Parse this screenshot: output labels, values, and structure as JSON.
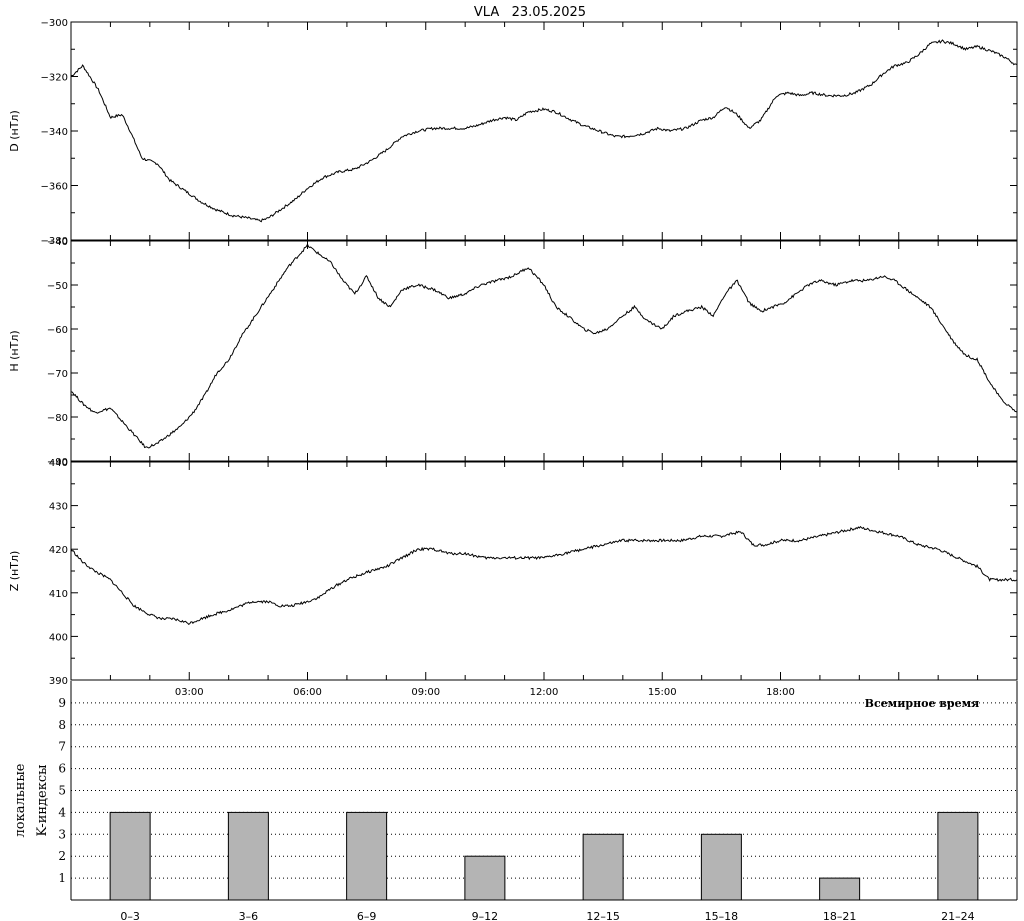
{
  "title": "VLA   23.05.2025",
  "chart_data": [
    {
      "type": "line",
      "ylabel": "D (нТл)",
      "ylim": [
        -380,
        -300
      ],
      "yticks": [
        -380,
        -360,
        -340,
        -320,
        -300
      ],
      "xlim": [
        0,
        24
      ],
      "series": [
        {
          "x": [
            0,
            0.3,
            0.7,
            1.0,
            1.3,
            1.5,
            1.8,
            2.2,
            2.5,
            2.9,
            3.3,
            3.7,
            4.1,
            4.5,
            4.8,
            5.0,
            5.3,
            5.7,
            6.0,
            6.4,
            6.8,
            7.2,
            7.6,
            8.0,
            8.4,
            8.8,
            9.2,
            9.6,
            10.0,
            10.3,
            10.7,
            11.0,
            11.3,
            11.6,
            12.0,
            12.3,
            12.7,
            13.0,
            13.4,
            13.8,
            14.1,
            14.5,
            14.9,
            15.2,
            15.6,
            16.0,
            16.3,
            16.6,
            16.9,
            17.2,
            17.5,
            17.9,
            18.2,
            18.5,
            18.8,
            19.2,
            19.6,
            19.9,
            20.3,
            20.6,
            20.9,
            21.2,
            21.5,
            21.8,
            22.1,
            22.4,
            22.7,
            23.0,
            23.4,
            23.7,
            24.0
          ],
          "y": [
            -320,
            -316,
            -325,
            -335,
            -334,
            -340,
            -350,
            -352,
            -358,
            -362,
            -366,
            -369,
            -371,
            -372,
            -373,
            -372,
            -369,
            -365,
            -361,
            -357,
            -355,
            -354,
            -351,
            -347,
            -342,
            -340,
            -339,
            -339,
            -339,
            -338,
            -336,
            -335,
            -336,
            -333,
            -332,
            -333,
            -336,
            -338,
            -340,
            -342,
            -342,
            -341,
            -339,
            -340,
            -339,
            -336,
            -335,
            -331,
            -334,
            -339,
            -336,
            -327,
            -326,
            -327,
            -326,
            -327,
            -327,
            -326,
            -323,
            -319,
            -316,
            -315,
            -312,
            -308,
            -307,
            -308,
            -310,
            -309,
            -311,
            -313,
            -316
          ]
        }
      ]
    },
    {
      "type": "line",
      "ylabel": "H (нТл)",
      "ylim": [
        -90,
        -40
      ],
      "yticks": [
        -90,
        -80,
        -70,
        -60,
        -50,
        -40
      ],
      "xlim": [
        0,
        24
      ],
      "series": [
        {
          "x": [
            0,
            0.3,
            0.6,
            1.0,
            1.3,
            1.6,
            1.9,
            2.2,
            2.5,
            2.8,
            3.1,
            3.4,
            3.7,
            4.0,
            4.3,
            4.6,
            4.9,
            5.2,
            5.5,
            5.8,
            6.0,
            6.3,
            6.6,
            6.9,
            7.2,
            7.5,
            7.8,
            8.1,
            8.4,
            8.8,
            9.2,
            9.6,
            10.0,
            10.4,
            10.8,
            11.2,
            11.6,
            12.0,
            12.3,
            12.6,
            13.0,
            13.3,
            13.6,
            14.0,
            14.3,
            14.6,
            15.0,
            15.3,
            15.6,
            16.0,
            16.3,
            16.6,
            16.9,
            17.2,
            17.5,
            17.8,
            18.1,
            18.4,
            18.7,
            19.0,
            19.4,
            19.8,
            20.2,
            20.6,
            20.9,
            21.2,
            21.5,
            21.8,
            22.1,
            22.4,
            22.7,
            23.0,
            23.3,
            23.6,
            24.0
          ],
          "y": [
            -74,
            -77,
            -79,
            -78,
            -81,
            -84,
            -87,
            -86,
            -84,
            -82,
            -79,
            -75,
            -70,
            -67,
            -62,
            -58,
            -54,
            -50,
            -46,
            -43,
            -41,
            -43,
            -45,
            -49,
            -52,
            -48,
            -53,
            -55,
            -51,
            -50,
            -51,
            -53,
            -52,
            -50,
            -49,
            -48,
            -46,
            -50,
            -55,
            -57,
            -60,
            -61,
            -60,
            -57,
            -55,
            -58,
            -60,
            -57,
            -56,
            -55,
            -57,
            -52,
            -49,
            -54,
            -56,
            -55,
            -54,
            -52,
            -50,
            -49,
            -50,
            -49,
            -49,
            -48,
            -49,
            -51,
            -53,
            -55,
            -59,
            -63,
            -66,
            -67,
            -72,
            -76,
            -79
          ]
        }
      ]
    },
    {
      "type": "line",
      "ylabel": "Z (нТл)",
      "ylim": [
        390,
        440
      ],
      "yticks": [
        390,
        400,
        410,
        420,
        430,
        440
      ],
      "xlim": [
        0,
        24
      ],
      "series": [
        {
          "x": [
            0,
            0.3,
            0.6,
            1.0,
            1.3,
            1.6,
            2.0,
            2.3,
            2.6,
            3.0,
            3.3,
            3.6,
            4.0,
            4.3,
            4.6,
            5.0,
            5.3,
            5.6,
            6.0,
            6.3,
            6.6,
            7.0,
            7.3,
            7.6,
            8.0,
            8.4,
            8.8,
            9.2,
            9.6,
            10.0,
            10.5,
            11.0,
            11.5,
            12.0,
            12.5,
            13.0,
            13.5,
            14.0,
            14.5,
            15.0,
            15.5,
            16.0,
            16.5,
            17.0,
            17.3,
            17.6,
            18.0,
            18.5,
            19.0,
            19.5,
            20.0,
            20.5,
            21.0,
            21.5,
            22.0,
            22.5,
            23.0,
            23.3,
            23.6,
            24.0
          ],
          "y": [
            420,
            417,
            415,
            413,
            410,
            407,
            405,
            404,
            404,
            403,
            404,
            405,
            406,
            407,
            408,
            408,
            407,
            407,
            408,
            409,
            411,
            413,
            414,
            415,
            416,
            418,
            420,
            420,
            419,
            419,
            418,
            418,
            418,
            418,
            419,
            420,
            421,
            422,
            422,
            422,
            422,
            423,
            423,
            424,
            421,
            421,
            422,
            422,
            423,
            424,
            425,
            424,
            423,
            421,
            420,
            418,
            416,
            413,
            413,
            413
          ]
        }
      ]
    },
    {
      "type": "bar",
      "ylabel_lines": [
        "локальные",
        "K-индексы"
      ],
      "xlabel": "Всемирное время",
      "ylim": [
        0,
        10
      ],
      "yticks": [
        1,
        2,
        3,
        4,
        5,
        6,
        7,
        8,
        9
      ],
      "categories": [
        "0–3",
        "3–6",
        "6–9",
        "9–12",
        "12–15",
        "15–18",
        "18–21",
        "21–24"
      ],
      "values": [
        4,
        4,
        4,
        2,
        3,
        3,
        1,
        4
      ],
      "bar_color": "#b4b4b4",
      "grid": "dotted horizontal"
    }
  ],
  "time_axis": {
    "ticks": [
      3,
      6,
      9,
      12,
      15,
      18
    ],
    "labels": [
      "03:00",
      "06:00",
      "09:00",
      "12:00",
      "15:00",
      "18:00"
    ]
  }
}
